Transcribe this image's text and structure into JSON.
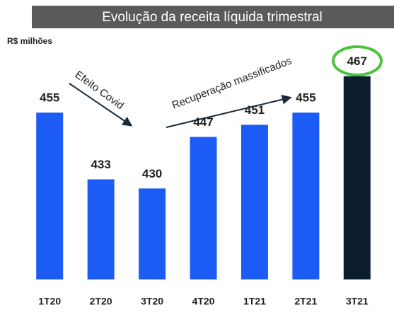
{
  "chart_data": {
    "type": "bar",
    "title": "Evolução da receita líquida trimestral",
    "subtitle": "R$ milhões",
    "categories": [
      "1T20",
      "2T20",
      "3T20",
      "4T20",
      "1T21",
      "2T21",
      "3T21"
    ],
    "values": [
      455,
      433,
      430,
      447,
      451,
      455,
      467
    ],
    "colors": [
      "#1c5cf5",
      "#1c5cf5",
      "#1c5cf5",
      "#1c5cf5",
      "#1c5cf5",
      "#1c5cf5",
      "#0b1c2c"
    ],
    "ylim": [
      400,
      480
    ],
    "annotations": [
      "Efeito Covid",
      "Recuperação massificados"
    ]
  }
}
